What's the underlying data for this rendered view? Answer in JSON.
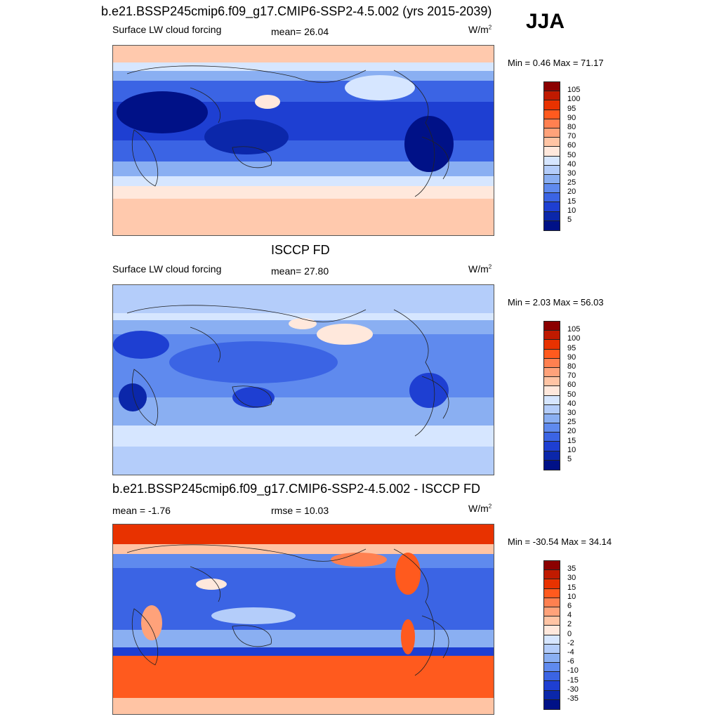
{
  "header": {
    "title": "b.e21.BSSP245cmip6.f09_g17.CMIP6-SSP2-4.5.002 (yrs 2015-2039)",
    "season": "JJA"
  },
  "panels": [
    {
      "title": "",
      "left_label": "Surface LW cloud forcing",
      "center_label": "mean=  26.04",
      "units": "W/m",
      "units_sup": "2",
      "minmax": "Min =   0.46 Max =  71.17",
      "levels": [
        "105",
        "100",
        "95",
        "90",
        "80",
        "70",
        "60",
        "50",
        "40",
        "30",
        "25",
        "20",
        "15",
        "10",
        "5"
      ],
      "colors": [
        "#8b0000",
        "#c01a00",
        "#e83200",
        "#ff5a1e",
        "#ff8050",
        "#ffa27a",
        "#ffc4a4",
        "#ffe8dc",
        "#d6e6ff",
        "#b4cdfa",
        "#8aaff2",
        "#5f8aee",
        "#3b64e4",
        "#1e3fd2",
        "#0b27aa",
        "#001187"
      ]
    },
    {
      "title": "ISCCP FD",
      "left_label": "Surface LW cloud forcing",
      "center_label": "mean=  27.80",
      "units": "W/m",
      "units_sup": "2",
      "minmax": "Min =   2.03 Max =  56.03",
      "levels": [
        "105",
        "100",
        "95",
        "90",
        "80",
        "70",
        "60",
        "50",
        "40",
        "30",
        "25",
        "20",
        "15",
        "10",
        "5"
      ],
      "colors": [
        "#8b0000",
        "#c01a00",
        "#e83200",
        "#ff5a1e",
        "#ff8050",
        "#ffa27a",
        "#ffc4a4",
        "#ffe8dc",
        "#d6e6ff",
        "#b4cdfa",
        "#8aaff2",
        "#5f8aee",
        "#3b64e4",
        "#1e3fd2",
        "#0b27aa",
        "#001187"
      ]
    },
    {
      "title": "b.e21.BSSP245cmip6.f09_g17.CMIP6-SSP2-4.5.002 - ISCCP FD",
      "left_label": "mean =  -1.76",
      "center_label": "rmse =  10.03",
      "units": "W/m",
      "units_sup": "2",
      "minmax": "Min = -30.54 Max =  34.14",
      "levels": [
        "35",
        "30",
        "15",
        "10",
        "6",
        "4",
        "2",
        "0",
        "-2",
        "-4",
        "-6",
        "-10",
        "-15",
        "-30",
        "-35"
      ],
      "colors": [
        "#8b0000",
        "#c01a00",
        "#e83200",
        "#ff5a1e",
        "#ff8050",
        "#ffa27a",
        "#ffc4a4",
        "#ffe8dc",
        "#d6e6ff",
        "#b4cdfa",
        "#8aaff2",
        "#5f8aee",
        "#3b64e4",
        "#1e3fd2",
        "#0b27aa",
        "#001187"
      ]
    }
  ]
}
